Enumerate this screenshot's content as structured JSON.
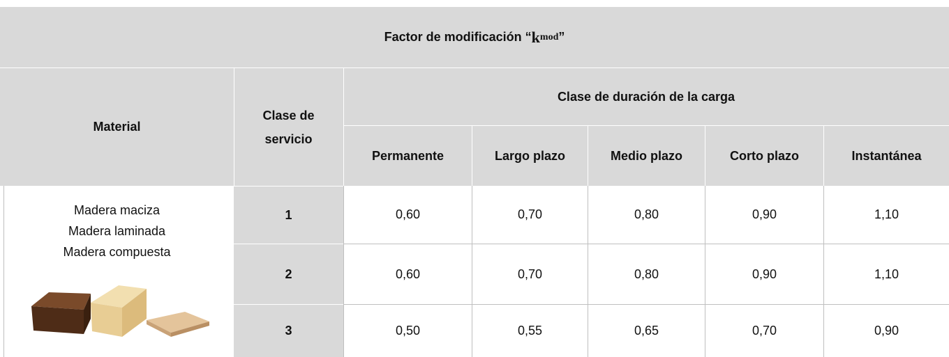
{
  "header": {
    "title_prefix": "Factor de modificación “",
    "title_symbol": "k",
    "title_subscript": "mod",
    "title_suffix": "”"
  },
  "table": {
    "header": {
      "material": "Material",
      "service_class": "Clase de servicio",
      "load_duration": "Clase de duración de la carga",
      "durations": [
        "Permanente",
        "Largo plazo",
        "Medio plazo",
        "Corto plazo",
        "Instantánea"
      ]
    },
    "materials": [
      "Madera maciza",
      "Madera laminada",
      "Madera compuesta"
    ],
    "rows": [
      [
        "1",
        "0,60",
        "0,70",
        "0,80",
        "0,90",
        "1,10"
      ],
      [
        "2",
        "0,60",
        "0,70",
        "0,80",
        "0,90",
        "1,10"
      ],
      [
        "3",
        "0,50",
        "0,55",
        "0,65",
        "0,70",
        "0,90"
      ]
    ]
  }
}
